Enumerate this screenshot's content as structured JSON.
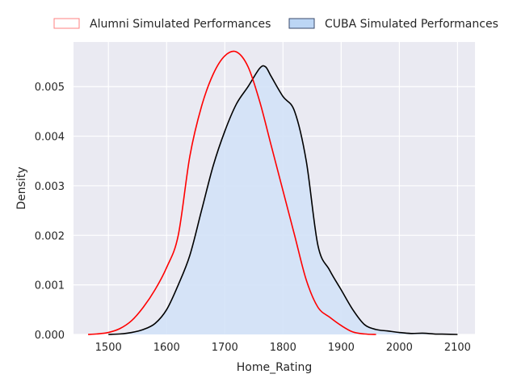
{
  "chart_data": {
    "type": "area",
    "title": "",
    "xlabel": "Home_Rating",
    "ylabel": "Density",
    "xlim": [
      1440,
      2130
    ],
    "ylim": [
      0,
      0.0059
    ],
    "xticks": [
      1500,
      1600,
      1700,
      1800,
      1900,
      2000,
      2100
    ],
    "yticks": [
      0.0,
      0.001,
      0.002,
      0.003,
      0.004,
      0.005
    ],
    "ytick_labels": [
      "0.000",
      "0.001",
      "0.002",
      "0.003",
      "0.004",
      "0.005"
    ],
    "grid": true,
    "legend": {
      "placement": "top-center-outside",
      "entries": [
        {
          "label": "Alumni Simulated Performances",
          "edge": "#ff8080",
          "fill": "none"
        },
        {
          "label": "CUBA Simulated Performances",
          "edge": "#3a4a6b",
          "fill": "#bcd6f5"
        }
      ]
    },
    "series": [
      {
        "name": "Alumni Simulated Performances",
        "color": "#ff0000",
        "fill": null,
        "x": [
          1465,
          1480,
          1500,
          1520,
          1540,
          1560,
          1580,
          1600,
          1620,
          1640,
          1660,
          1680,
          1700,
          1720,
          1740,
          1760,
          1780,
          1800,
          1820,
          1840,
          1860,
          1880,
          1900,
          1920,
          1940,
          1960
        ],
        "y": [
          0.0,
          1e-05,
          4e-05,
          0.00012,
          0.00028,
          0.00055,
          0.0009,
          0.00135,
          0.002,
          0.0036,
          0.0046,
          0.00525,
          0.00562,
          0.0057,
          0.0054,
          0.0047,
          0.0038,
          0.0029,
          0.002,
          0.0011,
          0.00055,
          0.00035,
          0.00018,
          5e-05,
          1e-05,
          0.0
        ]
      },
      {
        "name": "CUBA Simulated Performances",
        "color": "#000000",
        "fill": "#d3e2f7",
        "x": [
          1500,
          1520,
          1540,
          1560,
          1580,
          1600,
          1620,
          1640,
          1660,
          1680,
          1700,
          1720,
          1740,
          1760,
          1770,
          1780,
          1800,
          1820,
          1840,
          1860,
          1880,
          1900,
          1920,
          1940,
          1960,
          1980,
          2000,
          2020,
          2040,
          2060,
          2080,
          2100
        ],
        "y": [
          0.0,
          1e-05,
          4e-05,
          0.0001,
          0.00022,
          0.0005,
          0.001,
          0.0016,
          0.0025,
          0.0034,
          0.0041,
          0.00465,
          0.005,
          0.00537,
          0.0054,
          0.0052,
          0.0048,
          0.0045,
          0.0035,
          0.0018,
          0.0013,
          0.0009,
          0.0005,
          0.0002,
          0.0001,
          7e-05,
          4e-05,
          2e-05,
          2.5e-05,
          1e-05,
          5e-06,
          0.0
        ]
      }
    ]
  }
}
